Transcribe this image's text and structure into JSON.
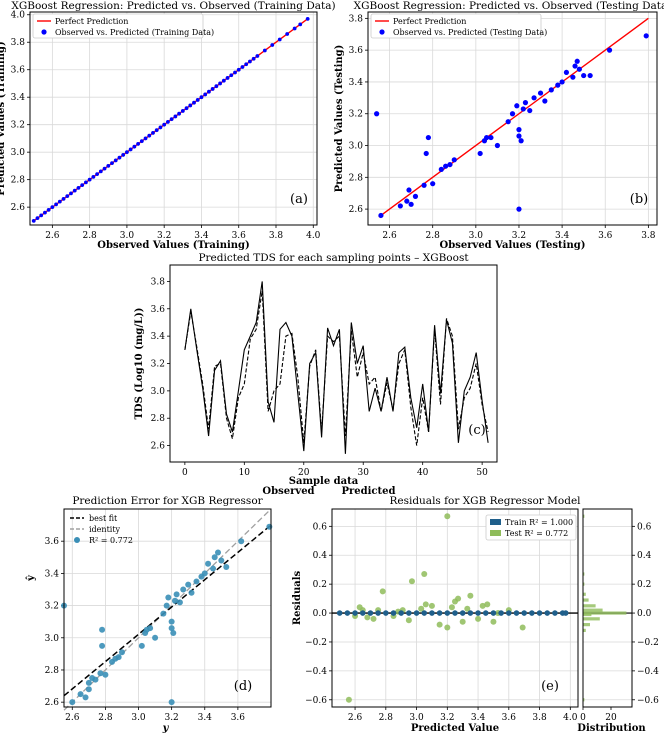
{
  "chart_data": [
    {
      "id": "a",
      "type": "scatter",
      "title": "XGBoost Regression: Predicted vs. Observed (Training Data)",
      "xlabel": "Observed Values (Training)",
      "ylabel": "Predicted Values (Training)",
      "panel_label": "(a)",
      "xlim": [
        2.48,
        4.02
      ],
      "ylim": [
        2.47,
        4.02
      ],
      "xticks": [
        "2.6",
        "2.8",
        "3.0",
        "3.2",
        "3.4",
        "3.6",
        "3.8",
        "4.0"
      ],
      "yticks": [
        "2.6",
        "2.8",
        "3.0",
        "3.2",
        "3.4",
        "3.6",
        "3.8",
        "4.0"
      ],
      "grid": true,
      "legend_position": "top-left",
      "series": [
        {
          "name": "Perfect Prediction",
          "type": "line",
          "color": "#ff0000",
          "x": [
            2.5,
            3.97
          ],
          "y": [
            2.5,
            3.97
          ]
        },
        {
          "name": "Observed vs. Predicted (Training Data)",
          "type": "scatter",
          "color": "#0000ff",
          "x": [
            2.5,
            2.52,
            2.54,
            2.56,
            2.58,
            2.6,
            2.62,
            2.64,
            2.66,
            2.68,
            2.7,
            2.72,
            2.74,
            2.76,
            2.78,
            2.8,
            2.82,
            2.84,
            2.86,
            2.88,
            2.9,
            2.92,
            2.94,
            2.96,
            2.98,
            3.0,
            3.02,
            3.04,
            3.06,
            3.08,
            3.1,
            3.12,
            3.14,
            3.16,
            3.18,
            3.2,
            3.22,
            3.24,
            3.26,
            3.28,
            3.3,
            3.32,
            3.34,
            3.36,
            3.38,
            3.4,
            3.42,
            3.44,
            3.46,
            3.48,
            3.5,
            3.52,
            3.54,
            3.56,
            3.58,
            3.6,
            3.62,
            3.64,
            3.66,
            3.68,
            3.7,
            3.74,
            3.78,
            3.82,
            3.86,
            3.9,
            3.93,
            3.97
          ],
          "y": [
            2.5,
            2.52,
            2.54,
            2.56,
            2.58,
            2.6,
            2.62,
            2.64,
            2.66,
            2.68,
            2.7,
            2.72,
            2.74,
            2.76,
            2.78,
            2.8,
            2.82,
            2.84,
            2.86,
            2.88,
            2.9,
            2.92,
            2.94,
            2.96,
            2.98,
            3.0,
            3.02,
            3.04,
            3.06,
            3.08,
            3.1,
            3.12,
            3.14,
            3.16,
            3.18,
            3.2,
            3.22,
            3.24,
            3.26,
            3.28,
            3.3,
            3.32,
            3.34,
            3.36,
            3.38,
            3.4,
            3.42,
            3.44,
            3.46,
            3.48,
            3.5,
            3.52,
            3.54,
            3.56,
            3.58,
            3.6,
            3.62,
            3.64,
            3.66,
            3.68,
            3.7,
            3.74,
            3.78,
            3.82,
            3.86,
            3.9,
            3.93,
            3.97
          ]
        }
      ]
    },
    {
      "id": "b",
      "type": "scatter",
      "title": "XGBoost Regression: Predicted vs. Observed (Testing Data)",
      "xlabel": "Observed Values (Testing)",
      "ylabel": "Predicted Values (Testing)",
      "panel_label": "(b)",
      "xlim": [
        2.5,
        3.84
      ],
      "ylim": [
        2.5,
        3.84
      ],
      "xticks": [
        "2.6",
        "2.8",
        "3.0",
        "3.2",
        "3.4",
        "3.6",
        "3.8"
      ],
      "yticks": [
        "2.6",
        "2.8",
        "3.0",
        "3.2",
        "3.4",
        "3.6",
        "3.8"
      ],
      "grid": true,
      "legend_position": "top-left",
      "series": [
        {
          "name": "Perfect Prediction",
          "type": "line",
          "color": "#ff0000",
          "x": [
            2.55,
            3.8
          ],
          "y": [
            2.55,
            3.8
          ]
        },
        {
          "name": "Observed vs. Predicted (Testing Data)",
          "type": "scatter",
          "color": "#0000ff",
          "x": [
            2.54,
            2.56,
            2.65,
            2.68,
            2.69,
            2.7,
            2.72,
            2.76,
            2.77,
            2.78,
            2.8,
            2.84,
            2.86,
            2.88,
            2.9,
            3.02,
            3.04,
            3.05,
            3.07,
            3.1,
            3.15,
            3.17,
            3.19,
            3.2,
            3.2,
            3.2,
            3.21,
            3.22,
            3.23,
            3.25,
            3.27,
            3.3,
            3.32,
            3.35,
            3.38,
            3.4,
            3.42,
            3.45,
            3.46,
            3.47,
            3.48,
            3.5,
            3.53,
            3.62,
            3.79
          ],
          "y": [
            3.2,
            2.56,
            2.62,
            2.65,
            2.72,
            2.63,
            2.68,
            2.75,
            2.95,
            3.05,
            2.76,
            2.85,
            2.87,
            2.88,
            2.91,
            2.95,
            3.03,
            3.05,
            3.05,
            3.0,
            3.15,
            3.2,
            3.25,
            3.1,
            3.06,
            2.6,
            3.03,
            3.23,
            3.27,
            3.22,
            3.3,
            3.33,
            3.28,
            3.35,
            3.38,
            3.4,
            3.46,
            3.43,
            3.5,
            3.53,
            3.48,
            3.44,
            3.44,
            3.6,
            3.69
          ]
        }
      ]
    },
    {
      "id": "c",
      "type": "line",
      "title": "Predicted TDS for each sampling points – XGBoost",
      "xlabel": "Sample data",
      "ylabel": "TDS (Log10 (mg/L))",
      "panel_label": "(c)",
      "xlim": [
        -2.5,
        52.5
      ],
      "ylim": [
        2.48,
        3.92
      ],
      "xticks": [
        "0",
        "10",
        "20",
        "30",
        "40",
        "50"
      ],
      "yticks": [
        "2.6",
        "2.8",
        "3.0",
        "3.2",
        "3.4",
        "3.6",
        "3.8"
      ],
      "grid": false,
      "legend_position": "bottom-center",
      "x": [
        0,
        1,
        2,
        3,
        4,
        5,
        6,
        7,
        8,
        9,
        10,
        11,
        12,
        13,
        14,
        15,
        16,
        17,
        18,
        19,
        20,
        21,
        22,
        23,
        24,
        25,
        26,
        27,
        28,
        29,
        30,
        31,
        32,
        33,
        34,
        35,
        36,
        37,
        38,
        39,
        40,
        41,
        42,
        43,
        44,
        45,
        46,
        47,
        48,
        49,
        50,
        51
      ],
      "series": [
        {
          "name": "Observed",
          "style": "solid",
          "values": [
            3.3,
            3.6,
            3.3,
            3.02,
            2.67,
            3.15,
            3.22,
            2.83,
            2.7,
            3.0,
            3.3,
            3.4,
            3.5,
            3.8,
            2.92,
            2.77,
            3.45,
            3.5,
            3.4,
            2.98,
            2.56,
            3.2,
            3.28,
            2.66,
            3.46,
            3.33,
            3.45,
            2.54,
            3.5,
            3.2,
            3.33,
            2.85,
            3.02,
            2.85,
            3.1,
            2.85,
            3.28,
            3.32,
            2.95,
            2.73,
            3.05,
            2.7,
            3.48,
            2.98,
            3.52,
            3.35,
            2.62,
            3.0,
            3.1,
            3.28,
            2.93,
            2.62
          ]
        },
        {
          "name": "Predicted",
          "style": "dashed",
          "values": [
            3.3,
            3.58,
            3.32,
            3.05,
            2.72,
            3.18,
            3.2,
            2.8,
            2.65,
            2.95,
            3.05,
            3.38,
            3.45,
            3.73,
            2.85,
            3.0,
            3.05,
            3.4,
            3.42,
            3.1,
            2.62,
            3.18,
            3.3,
            2.7,
            3.4,
            3.36,
            3.4,
            2.67,
            3.44,
            3.1,
            3.28,
            3.05,
            3.1,
            2.85,
            3.06,
            2.86,
            3.2,
            3.3,
            2.88,
            2.6,
            2.95,
            2.7,
            3.45,
            2.9,
            3.53,
            3.4,
            2.72,
            2.95,
            3.02,
            3.2,
            2.9,
            2.7
          ]
        }
      ]
    },
    {
      "id": "d",
      "type": "scatter",
      "title": "Prediction Error for XGB Regressor",
      "xlabel": "y",
      "ylabel": "ŷ",
      "panel_label": "(d)",
      "xlim": [
        2.55,
        3.8
      ],
      "ylim": [
        2.57,
        3.8
      ],
      "xticks": [
        "2.6",
        "2.8",
        "3.0",
        "3.2",
        "3.4",
        "3.6"
      ],
      "yticks": [
        "2.6",
        "2.8",
        "3.0",
        "3.2",
        "3.4",
        "3.6"
      ],
      "grid": true,
      "legend_position": "top-left",
      "series": [
        {
          "name": "best fit",
          "type": "line",
          "style": "dashed",
          "color": "#000000",
          "x": [
            2.55,
            3.8
          ],
          "y": [
            2.64,
            3.7
          ]
        },
        {
          "name": "identity",
          "type": "line",
          "style": "dashed",
          "color": "#a0a0a0",
          "x": [
            2.55,
            3.8
          ],
          "y": [
            2.55,
            3.8
          ]
        },
        {
          "name": "R² = 0.772",
          "type": "scatter",
          "color": "#3a8fb7",
          "x": [
            2.55,
            2.6,
            2.65,
            2.68,
            2.7,
            2.7,
            2.72,
            2.74,
            2.77,
            2.78,
            2.78,
            2.8,
            2.84,
            2.86,
            2.88,
            2.9,
            3.02,
            3.04,
            3.05,
            3.07,
            3.1,
            3.15,
            3.17,
            3.18,
            3.2,
            3.2,
            3.2,
            3.21,
            3.22,
            3.23,
            3.25,
            3.27,
            3.3,
            3.32,
            3.35,
            3.38,
            3.4,
            3.42,
            3.45,
            3.46,
            3.48,
            3.5,
            3.53,
            3.62,
            3.79
          ],
          "y": [
            3.2,
            2.6,
            2.65,
            2.63,
            2.72,
            2.68,
            2.75,
            2.74,
            2.78,
            2.95,
            3.05,
            2.77,
            2.85,
            2.87,
            2.88,
            2.91,
            2.95,
            3.03,
            3.05,
            3.06,
            3.0,
            3.15,
            3.2,
            3.25,
            3.1,
            3.06,
            2.6,
            3.03,
            3.23,
            3.27,
            3.22,
            3.3,
            3.33,
            3.28,
            3.35,
            3.38,
            3.4,
            3.46,
            3.43,
            3.5,
            3.53,
            3.48,
            3.44,
            3.6,
            3.69
          ]
        }
      ]
    },
    {
      "id": "e",
      "type": "scatter",
      "title": "Residuals for XGB Regressor Model",
      "xlabel": "Predicted Value",
      "ylabel": "Residuals",
      "panel_label": "(e)",
      "xlim": [
        2.45,
        4.05
      ],
      "ylim": [
        -0.65,
        0.72
      ],
      "xticks": [
        "2.6",
        "2.8",
        "3.0",
        "3.2",
        "3.4",
        "3.6",
        "3.8",
        "4.0"
      ],
      "yticks": [
        "−0.6",
        "−0.4",
        "−0.2",
        "0.0",
        "0.2",
        "0.4",
        "0.6"
      ],
      "grid": true,
      "legend_position": "top-right",
      "series": [
        {
          "name": "Train R² = 1.000",
          "type": "scatter",
          "color": "#1f5f8b",
          "x": [
            2.5,
            2.55,
            2.6,
            2.65,
            2.7,
            2.75,
            2.8,
            2.85,
            2.9,
            2.95,
            3.0,
            3.05,
            3.1,
            3.15,
            3.2,
            3.25,
            3.3,
            3.35,
            3.4,
            3.45,
            3.5,
            3.55,
            3.6,
            3.65,
            3.7,
            3.75,
            3.8,
            3.85,
            3.9,
            3.95,
            3.97
          ],
          "y": [
            0.0,
            0.0,
            0.0,
            0.0,
            0.0,
            0.0,
            0.0,
            0.0,
            0.0,
            0.0,
            0.0,
            0.0,
            0.0,
            0.0,
            0.0,
            0.0,
            0.0,
            0.0,
            0.0,
            0.0,
            0.0,
            0.0,
            0.0,
            0.0,
            0.0,
            0.0,
            0.0,
            0.0,
            0.0,
            0.0,
            0.0
          ]
        },
        {
          "name": "Test R² = 0.772",
          "type": "scatter",
          "color": "#8fbc5a",
          "x": [
            2.56,
            2.6,
            2.63,
            2.65,
            2.68,
            2.72,
            2.75,
            2.78,
            2.85,
            2.88,
            2.91,
            2.95,
            2.97,
            3.03,
            3.05,
            3.06,
            3.1,
            3.15,
            3.2,
            3.2,
            3.23,
            3.25,
            3.27,
            3.3,
            3.33,
            3.35,
            3.4,
            3.43,
            3.46,
            3.5,
            3.53,
            3.6,
            3.69
          ],
          "y": [
            -0.6,
            -0.02,
            0.04,
            0.02,
            -0.03,
            -0.04,
            0.02,
            0.15,
            -0.02,
            0.01,
            0.02,
            -0.05,
            0.22,
            0.03,
            0.27,
            0.06,
            0.05,
            -0.08,
            0.67,
            -0.1,
            0.04,
            0.08,
            0.1,
            -0.06,
            0.03,
            0.12,
            -0.04,
            0.05,
            0.06,
            -0.06,
            0.0,
            0.02,
            -0.1
          ]
        }
      ],
      "distribution": {
        "xlabel": "Distribution",
        "xticks": [
          "0",
          "20"
        ],
        "xlim": [
          0,
          35
        ],
        "bins": [
          {
            "y": -0.6,
            "count": 1
          },
          {
            "y": -0.12,
            "count": 2
          },
          {
            "y": -0.08,
            "count": 5
          },
          {
            "y": -0.04,
            "count": 12
          },
          {
            "y": -0.01,
            "count": 6
          },
          {
            "y": 0.0,
            "count": 31
          },
          {
            "y": 0.02,
            "count": 14
          },
          {
            "y": 0.05,
            "count": 9
          },
          {
            "y": 0.09,
            "count": 4
          },
          {
            "y": 0.13,
            "count": 2
          },
          {
            "y": 0.2,
            "count": 1
          },
          {
            "y": 0.27,
            "count": 1
          },
          {
            "y": 0.67,
            "count": 1
          }
        ]
      }
    }
  ]
}
